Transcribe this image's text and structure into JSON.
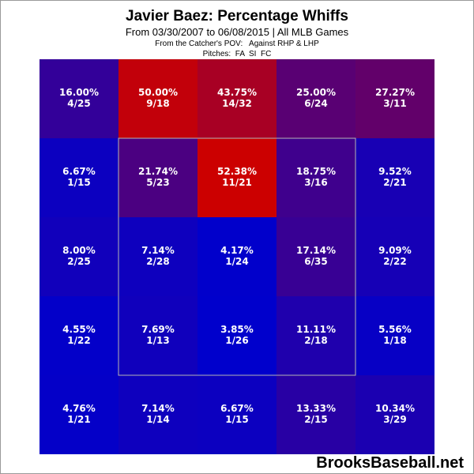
{
  "chart_data": {
    "type": "heatmap",
    "title": "Javier Baez: Percentage Whiffs",
    "subtitle": "From 03/30/2007 to 06/08/2015 | All MLB Games",
    "pov_label": "From the Catcher's POV:   Against RHP & LHP",
    "pitches_label": "Pitches:  FA  SI  FC",
    "rows": [
      [
        {
          "pct": "16.00%",
          "count": "4/25",
          "value": 16.0
        },
        {
          "pct": "50.00%",
          "count": "9/18",
          "value": 50.0
        },
        {
          "pct": "43.75%",
          "count": "14/32",
          "value": 43.75
        },
        {
          "pct": "25.00%",
          "count": "6/24",
          "value": 25.0
        },
        {
          "pct": "27.27%",
          "count": "3/11",
          "value": 27.27
        }
      ],
      [
        {
          "pct": "6.67%",
          "count": "1/15",
          "value": 6.67
        },
        {
          "pct": "21.74%",
          "count": "5/23",
          "value": 21.74
        },
        {
          "pct": "52.38%",
          "count": "11/21",
          "value": 52.38
        },
        {
          "pct": "18.75%",
          "count": "3/16",
          "value": 18.75
        },
        {
          "pct": "9.52%",
          "count": "2/21",
          "value": 9.52
        }
      ],
      [
        {
          "pct": "8.00%",
          "count": "2/25",
          "value": 8.0
        },
        {
          "pct": "7.14%",
          "count": "2/28",
          "value": 7.14
        },
        {
          "pct": "4.17%",
          "count": "1/24",
          "value": 4.17
        },
        {
          "pct": "17.14%",
          "count": "6/35",
          "value": 17.14
        },
        {
          "pct": "9.09%",
          "count": "2/22",
          "value": 9.09
        }
      ],
      [
        {
          "pct": "4.55%",
          "count": "1/22",
          "value": 4.55
        },
        {
          "pct": "7.69%",
          "count": "1/13",
          "value": 7.69
        },
        {
          "pct": "3.85%",
          "count": "1/26",
          "value": 3.85
        },
        {
          "pct": "11.11%",
          "count": "2/18",
          "value": 11.11
        },
        {
          "pct": "5.56%",
          "count": "1/18",
          "value": 5.56
        }
      ],
      [
        {
          "pct": "4.76%",
          "count": "1/21",
          "value": 4.76
        },
        {
          "pct": "7.14%",
          "count": "1/14",
          "value": 7.14
        },
        {
          "pct": "6.67%",
          "count": "1/15",
          "value": 6.67
        },
        {
          "pct": "13.33%",
          "count": "2/15",
          "value": 13.33
        },
        {
          "pct": "10.34%",
          "count": "3/29",
          "value": 10.34
        }
      ]
    ],
    "color_scale": {
      "low": "#0000cc",
      "high": "#cc0000"
    }
  },
  "watermark": "BrooksBaseball.net"
}
